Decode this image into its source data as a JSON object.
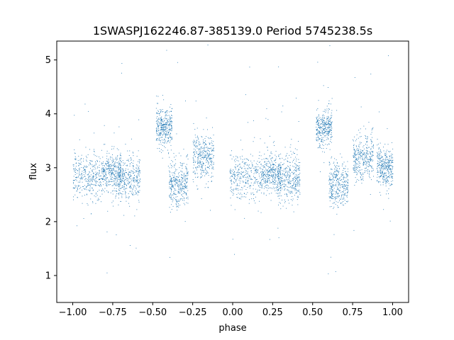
{
  "chart_data": {
    "type": "scatter",
    "title": "1SWASPJ162246.87-385139.0 Period 5745238.5s",
    "xlabel": "phase",
    "ylabel": "flux",
    "xlim": [
      -1.1,
      1.1
    ],
    "ylim": [
      0.5,
      5.35
    ],
    "xticks": [
      -1.0,
      -0.75,
      -0.5,
      -0.25,
      0.0,
      0.25,
      0.5,
      0.75,
      1.0
    ],
    "xtick_labels": [
      "−1.00",
      "−0.75",
      "−0.50",
      "−0.25",
      "0.00",
      "0.25",
      "0.50",
      "0.75",
      "1.00"
    ],
    "yticks": [
      1,
      2,
      3,
      4,
      5
    ],
    "ytick_labels": [
      "1",
      "2",
      "3",
      "4",
      "5"
    ],
    "grid": false,
    "marker_color": "#1f77b4",
    "series": [
      {
        "phase_range": [
          -1.0,
          1.0
        ],
        "description_note": "light curve points, period repeated twice",
        "clusters": [
          {
            "x_range": [
              -1.0,
              -0.82
            ],
            "y_center": 2.85,
            "spread": 0.35
          },
          {
            "x_range": [
              -0.82,
              -0.7
            ],
            "y_center": 2.9,
            "spread": 0.3
          },
          {
            "x_range": [
              -0.72,
              -0.58
            ],
            "y_center": 2.8,
            "spread": 0.35
          },
          {
            "x_range": [
              -0.48,
              -0.38
            ],
            "y_center": 3.75,
            "spread": 0.3
          },
          {
            "x_range": [
              -0.4,
              -0.28
            ],
            "y_center": 2.7,
            "spread": 0.35
          },
          {
            "x_range": [
              -0.25,
              -0.12
            ],
            "y_center": 3.2,
            "spread": 0.35
          },
          {
            "x_range": [
              -0.02,
              0.18
            ],
            "y_center": 2.85,
            "spread": 0.35
          },
          {
            "x_range": [
              0.18,
              0.3
            ],
            "y_center": 2.9,
            "spread": 0.3
          },
          {
            "x_range": [
              0.28,
              0.42
            ],
            "y_center": 2.8,
            "spread": 0.35
          },
          {
            "x_range": [
              0.52,
              0.62
            ],
            "y_center": 3.75,
            "spread": 0.3
          },
          {
            "x_range": [
              0.6,
              0.72
            ],
            "y_center": 2.7,
            "spread": 0.35
          },
          {
            "x_range": [
              0.75,
              0.88
            ],
            "y_center": 3.2,
            "spread": 0.35
          },
          {
            "x_range": [
              0.9,
              1.0
            ],
            "y_center": 3.0,
            "spread": 0.3
          }
        ]
      }
    ]
  }
}
